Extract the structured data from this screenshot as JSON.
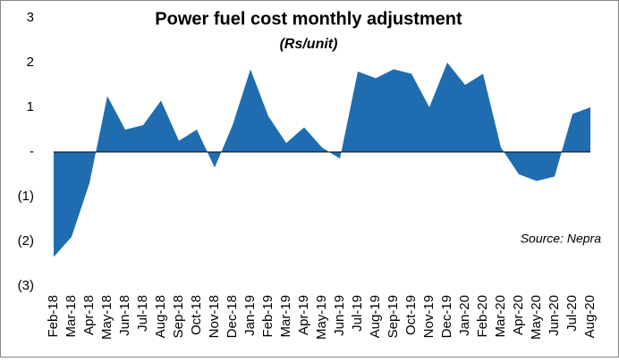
{
  "chart_data": {
    "type": "area",
    "title": "Power fuel cost monthly adjustment",
    "subtitle": "(Rs/unit)",
    "annotation": "Source: Nepra",
    "categories": [
      "Feb-18",
      "Mar-18",
      "Apr-18",
      "May-18",
      "Jun-18",
      "Jul-18",
      "Aug-18",
      "Sep-18",
      "Oct-18",
      "Nov-18",
      "Dec-18",
      "Jan-19",
      "Feb-19",
      "Mar-19",
      "Apr-19",
      "May-19",
      "Jun-19",
      "Jul-19",
      "Aug-19",
      "Sep-19",
      "Oct-19",
      "Nov-19",
      "Dec-19",
      "Jan-20",
      "Feb-20",
      "Mar-20",
      "Apr-20",
      "May-20",
      "Jun-20",
      "Jul-20",
      "Aug-20"
    ],
    "values": [
      -2.35,
      -1.9,
      -0.7,
      1.25,
      0.5,
      0.6,
      1.15,
      0.25,
      0.5,
      -0.35,
      0.6,
      1.85,
      0.8,
      0.2,
      0.55,
      0.1,
      -0.15,
      1.8,
      1.65,
      1.85,
      1.75,
      1.0,
      2.0,
      1.5,
      1.75,
      0.1,
      -0.5,
      -0.65,
      -0.55,
      0.85,
      1.0
    ],
    "color": "#1f6db0",
    "ylim": [
      -3,
      3
    ],
    "yticks": [
      {
        "value": -3,
        "label": "(3)"
      },
      {
        "value": -2,
        "label": "(2)"
      },
      {
        "value": -1,
        "label": "(1)"
      },
      {
        "value": 0,
        "label": "-"
      },
      1,
      2,
      3
    ],
    "grid": false
  }
}
